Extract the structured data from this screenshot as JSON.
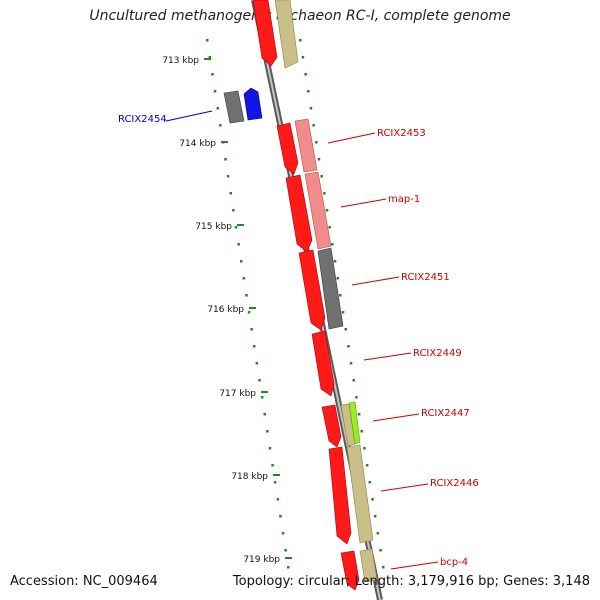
{
  "title": "Uncultured methanogenic archaeon RC-I, complete genome",
  "accession": "Accession: NC_009464",
  "summary": "Topology: circular; Length: 3,179,916 bp; Genes: 3,148",
  "colors": {
    "backbone": "#8c8c8c",
    "cds_red": "#ff1a1a",
    "gene_pink": "#f28c8c",
    "gene_gray": "#707070",
    "gene_olive": "#c8c088",
    "gene_lime": "#99ee22",
    "gene_blue": "#1414e6",
    "tick_green": "#1f8a1f",
    "label_red": "#cc0000",
    "label_blue": "#0000cc"
  },
  "ruler": [
    {
      "label": "713 kbp"
    },
    {
      "label": "714 kbp"
    },
    {
      "label": "715 kbp"
    },
    {
      "label": "716 kbp"
    },
    {
      "label": "717 kbp"
    },
    {
      "label": "718 kbp"
    },
    {
      "label": "719 kbp"
    }
  ],
  "gene_labels": [
    {
      "name": "RCIX2454",
      "color": "blue"
    },
    {
      "name": "RCIX2453",
      "color": "red"
    },
    {
      "name": "map-1",
      "color": "red"
    },
    {
      "name": "RCIX2451",
      "color": "red"
    },
    {
      "name": "RCIX2449",
      "color": "red"
    },
    {
      "name": "RCIX2447",
      "color": "red"
    },
    {
      "name": "RCIX2446",
      "color": "red"
    },
    {
      "name": "bcp-4",
      "color": "red"
    }
  ]
}
